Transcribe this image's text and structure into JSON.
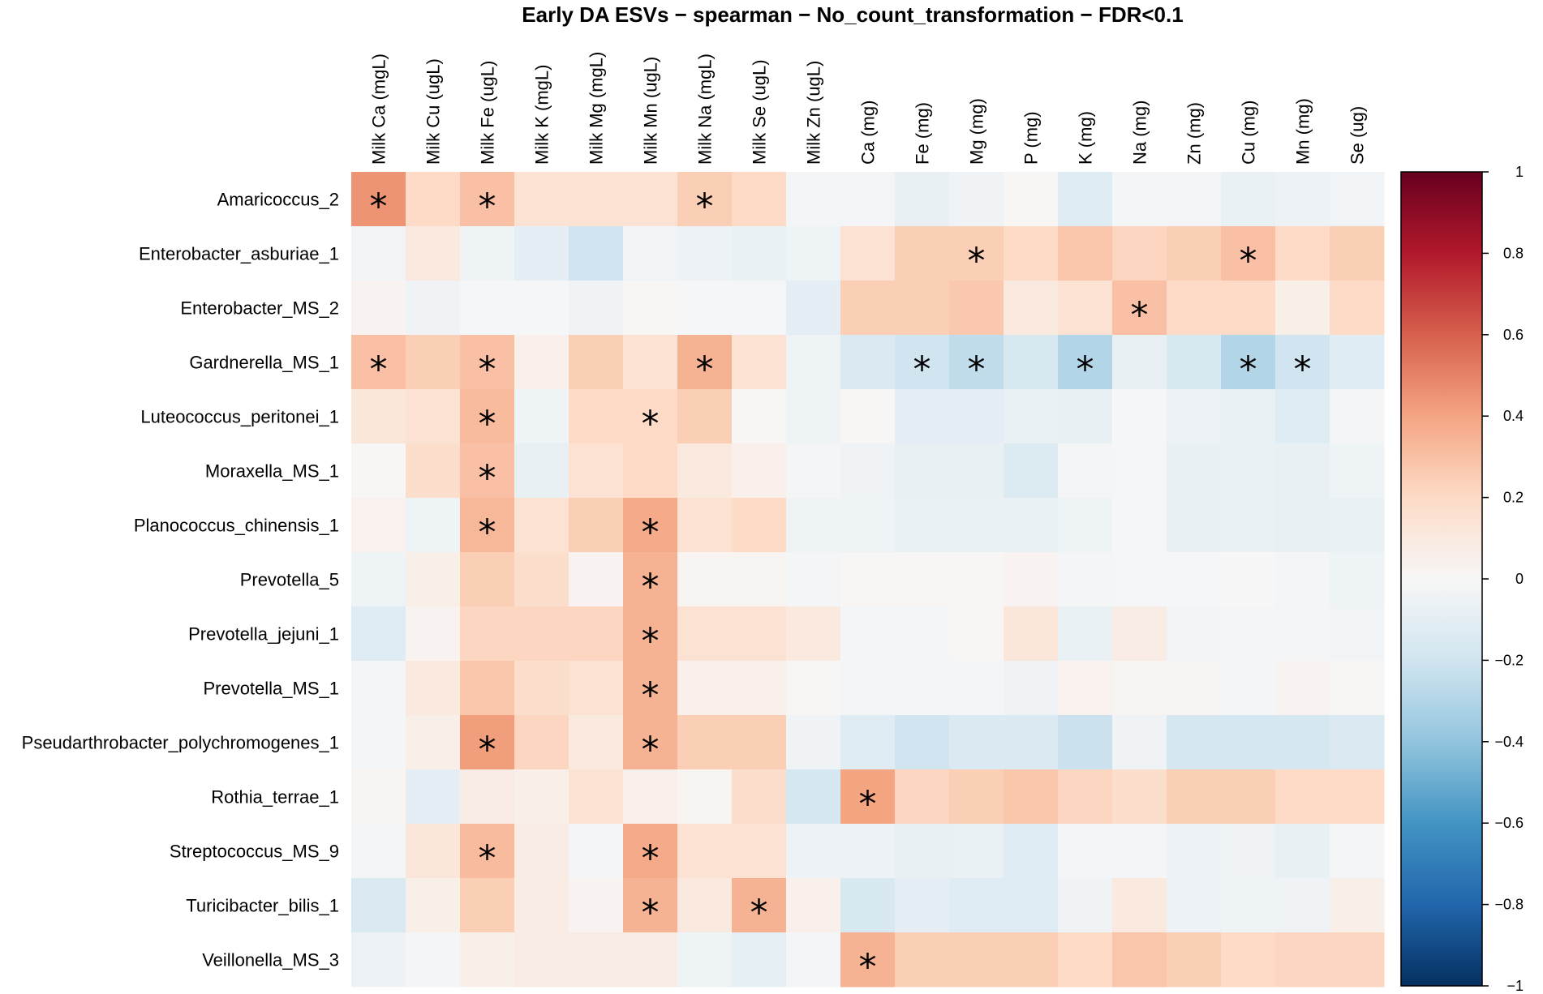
{
  "chart_data": {
    "type": "heatmap",
    "title": "Early DA ESVs − spearman − No_count_transformation − FDR<0.1",
    "rows": [
      "Amaricoccus_2",
      "Enterobacter_asburiae_1",
      "Enterobacter_MS_2",
      "Gardnerella_MS_1",
      "Luteococcus_peritonei_1",
      "Moraxella_MS_1",
      "Planococcus_chinensis_1",
      "Prevotella_5",
      "Prevotella_jejuni_1",
      "Prevotella_MS_1",
      "Pseudarthrobacter_polychromogenes_1",
      "Rothia_terrae_1",
      "Streptococcus_MS_9",
      "Turicibacter_bilis_1",
      "Veillonella_MS_3"
    ],
    "columns": [
      "Milk Ca (mgL)",
      "Milk Cu (ugL)",
      "Milk Fe (ugL)",
      "Milk K (mgL)",
      "Milk Mg (mgL)",
      "Milk Mn (ugL)",
      "Milk Na (mgL)",
      "Milk Se (ugL)",
      "Milk Zn (ugL)",
      "Ca (mg)",
      "Fe (mg)",
      "Mg (mg)",
      "P (mg)",
      "K (mg)",
      "Na (mg)",
      "Zn (mg)",
      "Cu (mg)",
      "Mn (mg)",
      "Se (ug)"
    ],
    "values": [
      [
        0.45,
        0.2,
        0.3,
        0.15,
        0.15,
        0.15,
        0.25,
        0.2,
        -0.02,
        -0.02,
        -0.08,
        -0.04,
        0.01,
        -0.12,
        -0.02,
        -0.02,
        -0.07,
        -0.06,
        -0.03
      ],
      [
        -0.03,
        0.1,
        -0.05,
        -0.1,
        -0.2,
        -0.03,
        -0.06,
        -0.07,
        -0.05,
        0.15,
        0.25,
        0.25,
        0.2,
        0.28,
        0.22,
        0.25,
        0.3,
        0.2,
        0.25
      ],
      [
        0.03,
        -0.04,
        -0.01,
        -0.01,
        -0.04,
        0.01,
        -0.01,
        -0.01,
        -0.1,
        0.25,
        0.25,
        0.27,
        0.1,
        0.15,
        0.3,
        0.2,
        0.2,
        0.06,
        0.2
      ],
      [
        0.3,
        0.25,
        0.3,
        0.05,
        0.25,
        0.15,
        0.35,
        0.15,
        -0.05,
        -0.15,
        -0.2,
        -0.25,
        -0.17,
        -0.3,
        -0.08,
        -0.16,
        -0.3,
        -0.2,
        -0.12
      ],
      [
        0.12,
        0.15,
        0.32,
        -0.05,
        0.2,
        0.2,
        0.25,
        0.01,
        -0.05,
        0.01,
        -0.1,
        -0.1,
        -0.07,
        -0.08,
        -0.01,
        -0.06,
        -0.07,
        -0.12,
        -0.02
      ],
      [
        0.01,
        0.18,
        0.3,
        -0.08,
        0.15,
        0.2,
        0.1,
        0.05,
        -0.02,
        -0.04,
        -0.08,
        -0.08,
        -0.14,
        -0.02,
        -0.01,
        -0.08,
        -0.07,
        -0.08,
        -0.05
      ],
      [
        0.04,
        -0.05,
        0.33,
        0.15,
        0.25,
        0.38,
        0.15,
        0.2,
        -0.05,
        -0.05,
        -0.07,
        -0.07,
        -0.07,
        -0.05,
        -0.01,
        -0.08,
        -0.07,
        -0.08,
        -0.07
      ],
      [
        -0.05,
        0.06,
        0.25,
        0.18,
        0.03,
        0.35,
        0.02,
        0.02,
        -0.02,
        0.01,
        0.01,
        0.01,
        0.03,
        -0.02,
        -0.01,
        -0.01,
        0.0,
        -0.02,
        -0.05
      ],
      [
        -0.12,
        0.03,
        0.22,
        0.22,
        0.22,
        0.35,
        0.15,
        0.15,
        0.1,
        -0.02,
        -0.02,
        0.01,
        0.12,
        -0.07,
        0.08,
        -0.03,
        -0.02,
        -0.02,
        -0.03
      ],
      [
        -0.02,
        0.1,
        0.28,
        0.18,
        0.15,
        0.35,
        0.05,
        0.05,
        0.01,
        -0.02,
        -0.02,
        -0.02,
        -0.04,
        0.04,
        0.02,
        0.02,
        -0.02,
        0.03,
        0.01
      ],
      [
        -0.02,
        0.06,
        0.42,
        0.22,
        0.1,
        0.35,
        0.25,
        0.25,
        -0.04,
        -0.12,
        -0.2,
        -0.15,
        -0.15,
        -0.22,
        -0.04,
        -0.18,
        -0.18,
        -0.18,
        -0.15
      ],
      [
        0.02,
        -0.1,
        0.08,
        0.06,
        0.15,
        0.05,
        0.02,
        0.18,
        -0.18,
        0.4,
        0.22,
        0.25,
        0.28,
        0.22,
        0.18,
        0.25,
        0.25,
        0.2,
        0.2
      ],
      [
        -0.02,
        0.12,
        0.32,
        0.08,
        -0.02,
        0.38,
        0.15,
        0.15,
        -0.06,
        -0.06,
        -0.08,
        -0.07,
        -0.12,
        -0.02,
        -0.02,
        -0.06,
        -0.04,
        -0.08,
        -0.02
      ],
      [
        -0.15,
        0.06,
        0.25,
        0.08,
        0.03,
        0.35,
        0.1,
        0.35,
        0.05,
        -0.16,
        -0.1,
        -0.12,
        -0.12,
        -0.04,
        0.1,
        -0.06,
        -0.05,
        -0.04,
        0.06
      ],
      [
        -0.06,
        -0.02,
        0.06,
        0.08,
        0.08,
        0.08,
        -0.05,
        -0.09,
        -0.02,
        0.35,
        0.25,
        0.25,
        0.25,
        0.2,
        0.28,
        0.25,
        0.2,
        0.22,
        0.22
      ]
    ],
    "significant": [
      [
        0,
        0
      ],
      [
        0,
        2
      ],
      [
        0,
        6
      ],
      [
        1,
        11
      ],
      [
        1,
        16
      ],
      [
        2,
        14
      ],
      [
        3,
        0
      ],
      [
        3,
        2
      ],
      [
        3,
        6
      ],
      [
        3,
        10
      ],
      [
        3,
        11
      ],
      [
        3,
        13
      ],
      [
        3,
        16
      ],
      [
        3,
        17
      ],
      [
        4,
        2
      ],
      [
        4,
        5
      ],
      [
        5,
        2
      ],
      [
        6,
        2
      ],
      [
        6,
        5
      ],
      [
        7,
        5
      ],
      [
        8,
        5
      ],
      [
        9,
        5
      ],
      [
        10,
        2
      ],
      [
        10,
        5
      ],
      [
        11,
        9
      ],
      [
        12,
        2
      ],
      [
        12,
        5
      ],
      [
        13,
        5
      ],
      [
        13,
        7
      ],
      [
        14,
        9
      ]
    ],
    "significance_marker": "*",
    "colorbar": {
      "range": [
        -1,
        1
      ],
      "ticks": [
        "1",
        "0.8",
        "0.6",
        "0.4",
        "0.2",
        "0",
        "−0.2",
        "−0.4",
        "−0.6",
        "−0.8",
        "−1"
      ],
      "tick_values": [
        1,
        0.8,
        0.6,
        0.4,
        0.2,
        0,
        -0.2,
        -0.4,
        -0.6,
        -0.8,
        -1
      ],
      "placement": "right"
    },
    "colors": {
      "stops": [
        "#053061",
        "#2166ac",
        "#4393c3",
        "#92c5de",
        "#d1e5f0",
        "#f7f7f7",
        "#fddbc7",
        "#f4a582",
        "#d6604d",
        "#b2182b",
        "#67001f"
      ]
    }
  }
}
